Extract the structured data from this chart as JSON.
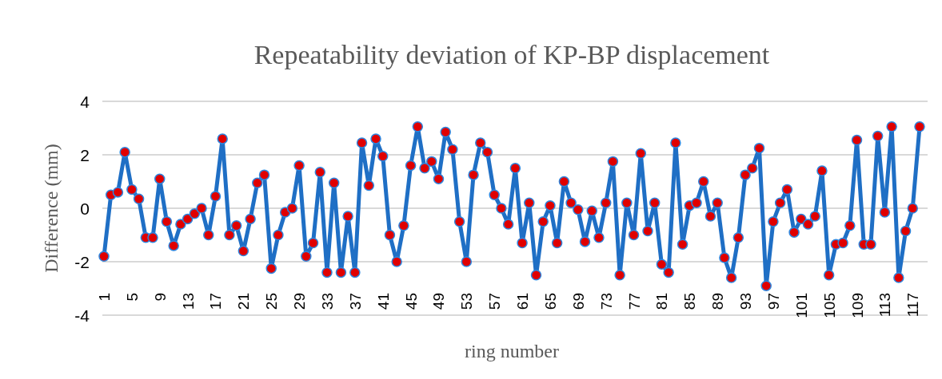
{
  "chart_data": {
    "type": "line",
    "title": "Repeatability deviation of KP-BP displacement",
    "xlabel": "ring number",
    "ylabel": "Difference (mm)",
    "categories": [
      "1",
      null,
      null,
      null,
      "5",
      null,
      null,
      null,
      "9",
      null,
      null,
      null,
      "13",
      null,
      null,
      null,
      "17",
      null,
      null,
      null,
      "21",
      null,
      null,
      null,
      "25",
      null,
      null,
      null,
      "29",
      null,
      null,
      null,
      "33",
      null,
      null,
      null,
      "37",
      null,
      null,
      null,
      "41",
      null,
      null,
      null,
      "45",
      null,
      null,
      null,
      "49",
      null,
      null,
      null,
      "53",
      null,
      null,
      null,
      "57",
      null,
      null,
      null,
      "61",
      null,
      null,
      null,
      "65",
      null,
      null,
      null,
      "69",
      null,
      null,
      null,
      "73",
      null,
      null,
      null,
      "77",
      null,
      null,
      null,
      "81",
      null,
      null,
      null,
      "85",
      null,
      null,
      null,
      "89",
      null,
      null,
      null,
      "93",
      null,
      null,
      null,
      "97",
      null,
      null,
      null,
      "101",
      null,
      null,
      null,
      "105",
      null,
      null,
      null,
      "109",
      null,
      null,
      null,
      "113",
      null,
      null,
      null,
      "117",
      null
    ],
    "series": [
      {
        "color": "#1f6fc5",
        "values": [
          -1.8,
          0.5,
          0.6,
          2.1,
          0.7,
          0.35,
          -1.1,
          -1.1,
          1.1,
          -0.5,
          -1.4,
          -0.6,
          -0.4,
          -0.2,
          0,
          -1.0,
          0.45,
          2.6,
          -1.0,
          -0.65,
          -1.6,
          -0.4,
          0.95,
          1.25,
          -2.25,
          -1.0,
          -0.15,
          0,
          1.6,
          -1.8,
          -1.3,
          1.35,
          -2.4,
          0.95,
          -2.4,
          -0.3,
          -2.4,
          2.45,
          0.85,
          2.6,
          1.95,
          -1.0,
          -2.0,
          -0.65,
          1.6,
          3.05,
          1.5,
          1.75,
          1.1,
          2.85,
          2.2,
          -0.5,
          -2.0,
          1.25,
          2.45,
          2.1,
          0.5,
          0,
          -0.6,
          1.5,
          -1.3,
          0.2,
          -2.5,
          -0.5,
          0.1,
          -1.3,
          1.0,
          0.2,
          -0.05,
          -1.25,
          -0.1,
          -1.1,
          0.2,
          1.75,
          -2.5,
          0.2,
          -1.0,
          2.05,
          -0.85,
          0.2,
          -2.1,
          -2.4,
          2.45,
          -1.35,
          0.1,
          0.2,
          1.0,
          -0.3,
          0.2,
          -1.85,
          -2.6,
          -1.1,
          1.25,
          1.5,
          2.25,
          -2.9,
          -0.5,
          0.2,
          0.7,
          -0.9,
          -0.4,
          -0.6,
          -0.3,
          1.4,
          -2.5,
          -1.35,
          -1.3,
          -0.65,
          2.55,
          -1.35,
          -1.35,
          2.7,
          -0.15,
          3.05,
          -2.6,
          -0.85,
          0,
          3.05
        ]
      }
    ],
    "ylim": [
      -4,
      4
    ],
    "yticks": [
      -4,
      -2,
      0,
      2,
      4
    ],
    "grid": "y",
    "marker": "circle",
    "line_style": "solid"
  }
}
